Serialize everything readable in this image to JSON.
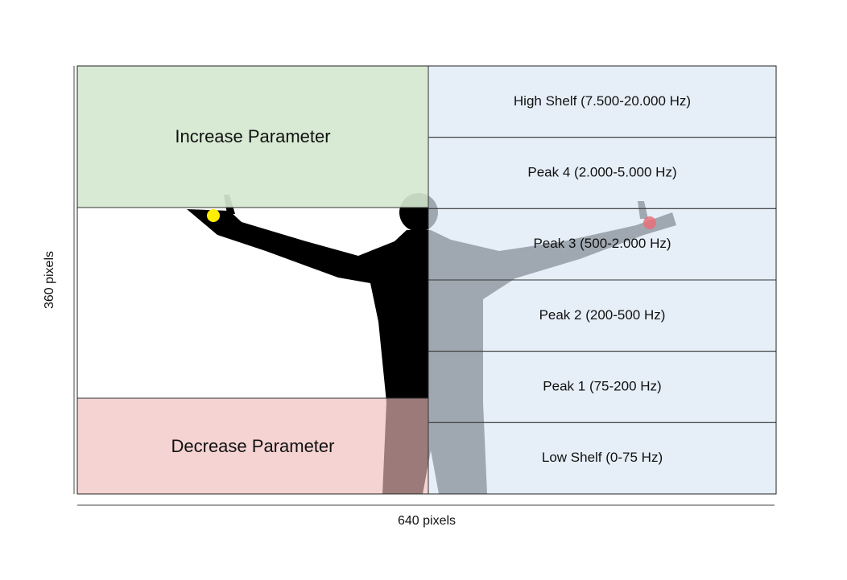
{
  "zones": {
    "increase": "Increase Parameter",
    "decrease": "Decrease Parameter"
  },
  "bands": [
    "High Shelf (7.500-20.000 Hz)",
    "Peak 4 (2.000-5.000 Hz)",
    "Peak 3 (500-2.000 Hz)",
    "Peak 2 (200-500 Hz)",
    "Peak 1 (75-200 Hz)",
    "Low Shelf (0-75 Hz)"
  ],
  "axes": {
    "height_label": "360 pixels",
    "width_label": "640 pixels"
  }
}
